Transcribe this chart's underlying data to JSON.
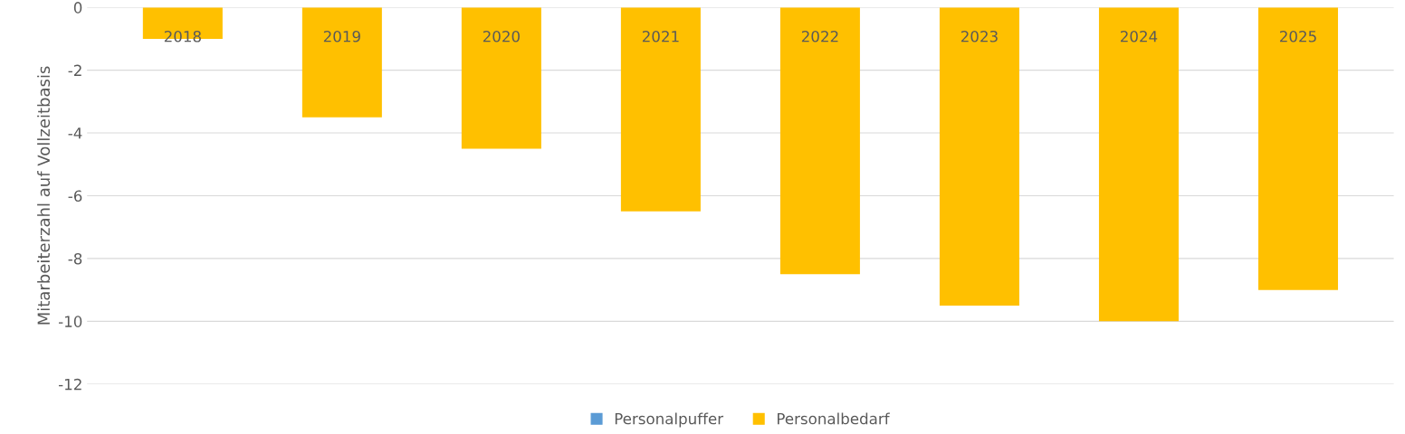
{
  "chart_data": {
    "type": "bar",
    "ylabel": "Mitarbeiterzahl auf Vollzeitbasis",
    "categories": [
      "2018",
      "2019",
      "2020",
      "2021",
      "2022",
      "2023",
      "2024",
      "2025"
    ],
    "series": [
      {
        "name": "Personalpuffer",
        "color": "#5b9bd5",
        "values": [
          null,
          null,
          null,
          null,
          null,
          null,
          null,
          null
        ]
      },
      {
        "name": "Personalbedarf",
        "color": "#ffc000",
        "values": [
          -1,
          -3.5,
          -4.5,
          -6.5,
          -8.5,
          -9.5,
          -10,
          -9
        ]
      }
    ],
    "ylim": [
      -12,
      0
    ],
    "yticks": [
      -12,
      -10,
      -8,
      -6,
      -4,
      -2,
      0
    ],
    "grid": "y",
    "legend": "bottom"
  }
}
